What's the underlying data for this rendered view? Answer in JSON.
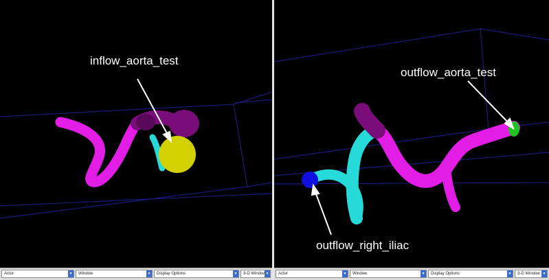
{
  "colors": {
    "background": "#000000",
    "bounding_box": "#1a1a7a",
    "vessel_magenta": "#e21ee6",
    "vessel_dark_magenta": "#7a0d7a",
    "vessel_cyan": "#27dada",
    "cap_yellow": "#d2d000",
    "cap_green": "#1fc41f",
    "cap_blue": "#1010e0",
    "arrow": "#ffffff",
    "label": "#ffffff"
  },
  "left_view": {
    "label": "inflow_aorta_test"
  },
  "right_view": {
    "label_top": "outflow_aorta_test",
    "label_bottom": "outflow_right_iliac"
  },
  "left_toolbar": {
    "actor": "Actor",
    "window": "Window",
    "display_options": "Display Options",
    "three_d_window": "3-D Window"
  },
  "right_toolbar": {
    "actor": "Actor",
    "window": "Window",
    "display_options": "Display Options",
    "three_d_window": "3-D Window"
  }
}
